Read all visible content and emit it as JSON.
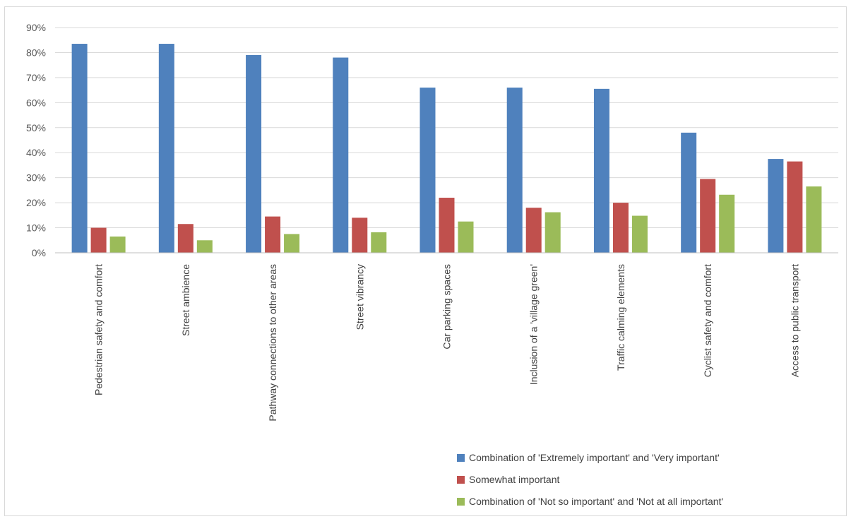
{
  "chart_data": {
    "type": "bar",
    "categories": [
      "Pedestrian safety and comfort",
      "Street ambience",
      "Pathway connections to other areas",
      "Street vibrancy",
      "Car parking spaces",
      "Inclusion of a 'village green'",
      "Traffic calming elements",
      "Cyclist safety and comfort",
      "Access to public transport"
    ],
    "series": [
      {
        "name": "Combination of 'Extremely important' and 'Very important'",
        "color": "#4f81bd",
        "values": [
          0.835,
          0.835,
          0.79,
          0.78,
          0.66,
          0.66,
          0.655,
          0.48,
          0.375
        ]
      },
      {
        "name": "Somewhat important",
        "color": "#c0504d",
        "values": [
          0.1,
          0.115,
          0.145,
          0.14,
          0.22,
          0.18,
          0.2,
          0.295,
          0.365
        ]
      },
      {
        "name": "Combination of 'Not so important' and 'Not at all important'",
        "color": "#9bbb59",
        "values": [
          0.065,
          0.05,
          0.075,
          0.082,
          0.125,
          0.162,
          0.148,
          0.232,
          0.265
        ]
      }
    ],
    "ylim": [
      0,
      0.9
    ],
    "yticks": [
      "0%",
      "10%",
      "20%",
      "30%",
      "40%",
      "50%",
      "60%",
      "70%",
      "80%",
      "90%"
    ],
    "gridlines": true,
    "legend_position": "bottom-right",
    "title": "",
    "xlabel": "",
    "ylabel": ""
  }
}
